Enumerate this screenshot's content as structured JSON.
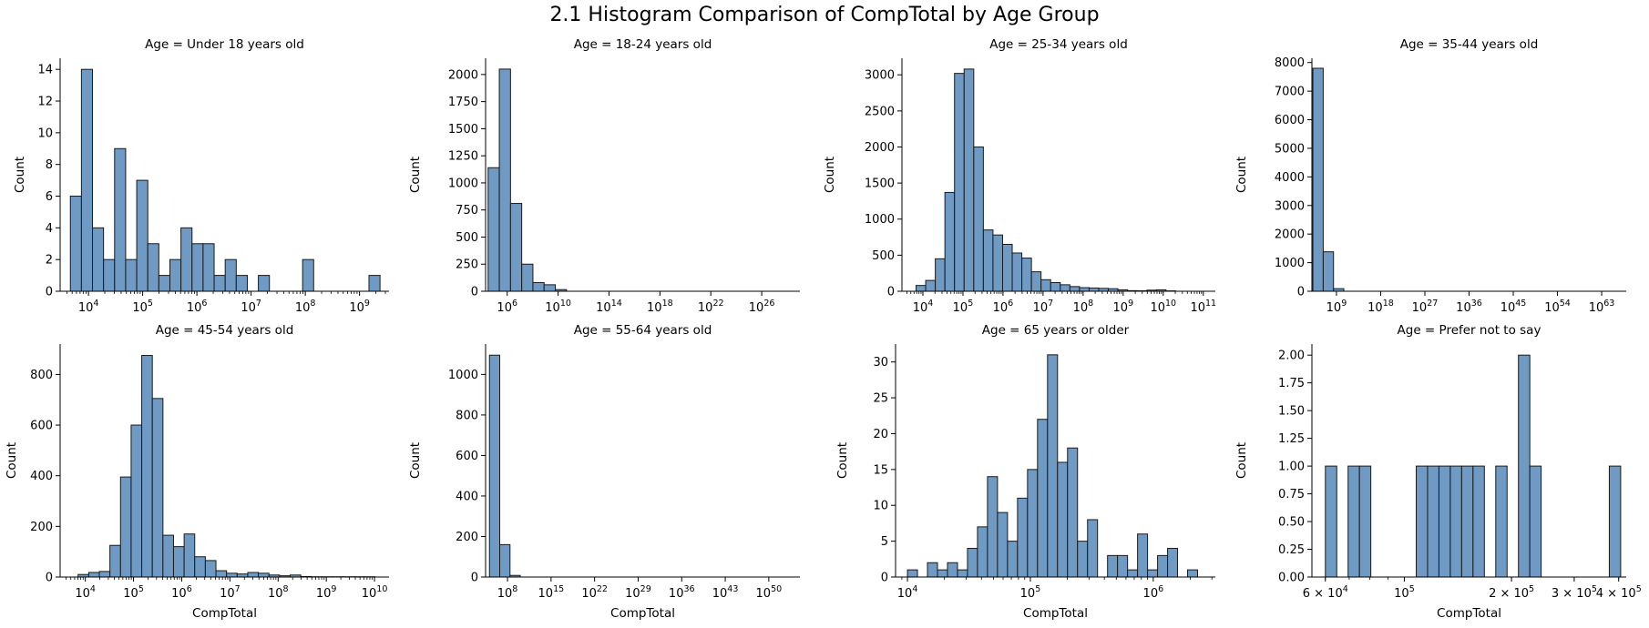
{
  "figure": {
    "title": "2.1 Histogram Comparison of CompTotal by Age Group"
  },
  "colors": {
    "bar_fill": "#6e9ac3",
    "bar_edge": "#1a1a1a",
    "axis": "#000000"
  },
  "chart_data": [
    {
      "type": "bar",
      "title": "Age = Under 18 years old",
      "xlabel": "",
      "ylabel": "Count",
      "x_scale": "log",
      "xlim": [
        3000,
        3500000000
      ],
      "ylim": [
        0,
        14.7
      ],
      "yticks": [
        0,
        2,
        4,
        6,
        8,
        10,
        12,
        14
      ],
      "ytick_labels": [
        "0",
        "2",
        "4",
        "6",
        "8",
        "10",
        "12",
        "14"
      ],
      "xticks": [
        10000,
        100000,
        1000000,
        10000000,
        100000000,
        1000000000
      ],
      "xtick_base": [
        "10",
        "10",
        "10",
        "10",
        "10",
        "10"
      ],
      "xtick_exp": [
        "4",
        "5",
        "6",
        "7",
        "8",
        "9"
      ],
      "bin_edges_log": [
        3.666,
        3.87,
        4.074,
        4.278,
        4.482,
        4.686,
        4.89,
        5.094,
        5.298,
        5.502,
        5.706,
        5.91,
        6.114,
        6.318,
        6.522,
        6.726,
        6.93,
        7.134,
        7.338,
        7.542,
        7.746,
        7.95,
        8.154,
        8.358,
        8.562,
        8.766,
        8.97,
        9.174,
        9.378
      ],
      "counts": [
        6,
        14,
        4,
        2,
        9,
        2,
        7,
        3,
        1,
        2,
        4,
        3,
        3,
        1,
        2,
        1,
        0,
        1,
        0,
        0,
        0,
        2,
        0,
        0,
        0,
        0,
        0,
        1
      ]
    },
    {
      "type": "bar",
      "title": "Age = 18-24 years old",
      "xlabel": "",
      "ylabel": "Count",
      "x_scale": "log",
      "xlim": [
        20000,
        1e+29
      ],
      "ylim": [
        0,
        2150
      ],
      "yticks": [
        0,
        250,
        500,
        750,
        1000,
        1250,
        1500,
        1750,
        2000
      ],
      "ytick_labels": [
        "0",
        "250",
        "500",
        "750",
        "1000",
        "1250",
        "1500",
        "1750",
        "2000"
      ],
      "xticks": [
        1000000.0,
        10000000000.0,
        100000000000000.0,
        1e+18,
        1e+22,
        1e+26
      ],
      "xtick_base": [
        "10",
        "10",
        "10",
        "10",
        "10",
        "10"
      ],
      "xtick_exp": [
        "6",
        "10",
        "14",
        "18",
        "22",
        "26"
      ],
      "bin_edges_log": [
        4.5,
        5.38,
        6.26,
        7.14,
        8.02,
        8.9,
        9.78,
        10.66
      ],
      "counts": [
        1140,
        2050,
        810,
        250,
        80,
        60,
        15
      ]
    },
    {
      "type": "bar",
      "title": "Age = 25-34 years old",
      "xlabel": "",
      "ylabel": "Count",
      "x_scale": "log",
      "xlim": [
        3000,
        200000000000.0
      ],
      "ylim": [
        0,
        3230
      ],
      "yticks": [
        0,
        500,
        1000,
        1500,
        2000,
        2500,
        3000
      ],
      "ytick_labels": [
        "0",
        "500",
        "1000",
        "1500",
        "2000",
        "2500",
        "3000"
      ],
      "xticks": [
        10000,
        100000,
        1000000,
        10000000,
        100000000,
        1000000000,
        10000000000,
        100000000000
      ],
      "xtick_base": [
        "10",
        "10",
        "10",
        "10",
        "10",
        "10",
        "10",
        "10"
      ],
      "xtick_exp": [
        "4",
        "5",
        "6",
        "7",
        "8",
        "9",
        "10",
        "11"
      ],
      "bin_edges_log": [
        3.83,
        4.07,
        4.31,
        4.55,
        4.79,
        5.03,
        5.27,
        5.51,
        5.75,
        5.99,
        6.23,
        6.47,
        6.71,
        6.95,
        7.19,
        7.43,
        7.67,
        7.91,
        8.15,
        8.39,
        8.63,
        8.87,
        9.11,
        9.35,
        9.59,
        9.83,
        10.07,
        10.31
      ],
      "counts": [
        80,
        150,
        450,
        1370,
        3020,
        3080,
        2000,
        850,
        780,
        650,
        530,
        460,
        270,
        160,
        120,
        90,
        65,
        50,
        45,
        40,
        35,
        20,
        8,
        6,
        15,
        20,
        5
      ]
    },
    {
      "type": "bar",
      "title": "Age = 35-44 years old",
      "xlabel": "",
      "ylabel": "Count",
      "x_scale": "log",
      "xlim": [
        10000,
        1e+68
      ],
      "ylim": [
        0,
        8150
      ],
      "yticks": [
        0,
        1000,
        2000,
        3000,
        4000,
        5000,
        6000,
        7000,
        8000
      ],
      "ytick_labels": [
        "0",
        "1000",
        "2000",
        "3000",
        "4000",
        "5000",
        "6000",
        "7000",
        "8000"
      ],
      "xticks": [
        1000000000.0,
        1e+18,
        1e+27,
        1e+36,
        1e+45,
        1e+54,
        1e+63
      ],
      "xtick_base": [
        "10",
        "10",
        "10",
        "10",
        "10",
        "10",
        "10"
      ],
      "xtick_exp": [
        "9",
        "18",
        "27",
        "36",
        "45",
        "54",
        "63"
      ],
      "bin_edges_log": [
        4.2,
        6.3,
        8.4,
        10.5
      ],
      "counts": [
        7800,
        1380,
        90
      ]
    },
    {
      "type": "bar",
      "title": "Age = 45-54 years old",
      "xlabel": "CompTotal",
      "ylabel": "Count",
      "x_scale": "log",
      "xlim": [
        3000,
        20000000000.0
      ],
      "ylim": [
        0,
        920
      ],
      "yticks": [
        0,
        200,
        400,
        600,
        800
      ],
      "ytick_labels": [
        "0",
        "200",
        "400",
        "600",
        "800"
      ],
      "xticks": [
        10000,
        100000,
        1000000,
        10000000,
        100000000,
        1000000000,
        10000000000
      ],
      "xtick_base": [
        "10",
        "10",
        "10",
        "10",
        "10",
        "10",
        "10"
      ],
      "xtick_exp": [
        "4",
        "5",
        "6",
        "7",
        "8",
        "9",
        "10"
      ],
      "bin_edges_log": [
        3.85,
        4.07,
        4.29,
        4.51,
        4.73,
        4.95,
        5.17,
        5.39,
        5.61,
        5.83,
        6.05,
        6.27,
        6.49,
        6.71,
        6.93,
        7.15,
        7.37,
        7.59,
        7.81,
        8.03,
        8.25,
        8.47,
        8.69,
        8.91,
        9.13,
        9.35,
        9.57,
        9.79,
        10.01
      ],
      "counts": [
        10,
        18,
        22,
        125,
        395,
        600,
        875,
        705,
        165,
        120,
        170,
        80,
        65,
        25,
        15,
        12,
        18,
        15,
        8,
        5,
        8,
        2,
        1,
        1,
        1,
        1,
        1,
        1
      ]
    },
    {
      "type": "bar",
      "title": "Age = 55-64 years old",
      "xlabel": "CompTotal",
      "ylabel": "Count",
      "x_scale": "log",
      "xlim": [
        30000,
        1e+55
      ],
      "ylim": [
        0,
        1150
      ],
      "yticks": [
        0,
        200,
        400,
        600,
        800,
        1000
      ],
      "ytick_labels": [
        "0",
        "200",
        "400",
        "600",
        "800",
        "1000"
      ],
      "xticks": [
        100000000.0,
        1000000000000000.0,
        1e+22,
        1e+29,
        1e+36,
        1e+43,
        1e+50
      ],
      "xtick_base": [
        "10",
        "10",
        "10",
        "10",
        "10",
        "10",
        "10"
      ],
      "xtick_exp": [
        "8",
        "15",
        "22",
        "29",
        "36",
        "43",
        "50"
      ],
      "bin_edges_log": [
        5.1,
        6.75,
        8.4,
        10.05
      ],
      "counts": [
        1095,
        160,
        8
      ]
    },
    {
      "type": "bar",
      "title": "Age = 65 years or older",
      "xlabel": "CompTotal",
      "ylabel": "Count",
      "x_scale": "log",
      "xlim": [
        8000,
        3200000
      ],
      "ylim": [
        0,
        32.5
      ],
      "yticks": [
        0,
        5,
        10,
        15,
        20,
        25,
        30
      ],
      "ytick_labels": [
        "0",
        "5",
        "10",
        "15",
        "20",
        "25",
        "30"
      ],
      "xticks": [
        10000,
        100000,
        1000000
      ],
      "xtick_base": [
        "10",
        "10",
        "10"
      ],
      "xtick_exp": [
        "4",
        "5",
        "6"
      ],
      "bin_edges_log": [
        4.0,
        4.0814,
        4.1628,
        4.2442,
        4.3256,
        4.407,
        4.4884,
        4.5698,
        4.6512,
        4.7326,
        4.814,
        4.8954,
        4.9768,
        5.0582,
        5.1396,
        5.221,
        5.3024,
        5.3838,
        5.4652,
        5.5466,
        5.628,
        5.7094,
        5.7908,
        5.8722,
        5.9536,
        6.035,
        6.1164,
        6.1978,
        6.2792,
        6.3606
      ],
      "counts": [
        1,
        0,
        2,
        1,
        2,
        1,
        4,
        7,
        14,
        9,
        5,
        11,
        15,
        22,
        31,
        16,
        18,
        5,
        8,
        0,
        3,
        3,
        1,
        6,
        1,
        3,
        4,
        0,
        1
      ]
    },
    {
      "type": "bar",
      "title": "Age = Prefer not to say",
      "xlabel": "CompTotal",
      "ylabel": "Count",
      "x_scale": "log",
      "xlim": [
        55000,
        420000
      ],
      "ylim": [
        0,
        2.1
      ],
      "yticks": [
        0,
        0.25,
        0.5,
        0.75,
        1.0,
        1.25,
        1.5,
        1.75,
        2.0
      ],
      "ytick_labels": [
        "0.00",
        "0.25",
        "0.50",
        "0.75",
        "1.00",
        "1.25",
        "1.50",
        "1.75",
        "2.00"
      ],
      "xticks": [
        60000,
        100000,
        200000,
        300000,
        400000
      ],
      "xtick_base": [
        "6 × 10",
        "10",
        "2 × 10",
        "3 × 10",
        "4 × 10"
      ],
      "xtick_exp": [
        "4",
        "5",
        "5",
        "5",
        "5"
      ],
      "bin_edges_log": [
        4.7782,
        4.8101,
        4.842,
        4.8739,
        4.9058,
        4.9377,
        4.9696,
        5.0015,
        5.0334,
        5.0653,
        5.0972,
        5.1291,
        5.161,
        5.1929,
        5.2248,
        5.2567,
        5.2886,
        5.3205,
        5.3524,
        5.3843,
        5.4162,
        5.4481,
        5.48,
        5.5119,
        5.5438,
        5.5757,
        5.6076
      ],
      "counts": [
        1,
        0,
        1,
        1,
        0,
        0,
        0,
        0,
        1,
        1,
        1,
        1,
        1,
        1,
        0,
        1,
        0,
        2,
        1,
        0,
        0,
        0,
        0,
        0,
        0,
        1
      ]
    }
  ]
}
